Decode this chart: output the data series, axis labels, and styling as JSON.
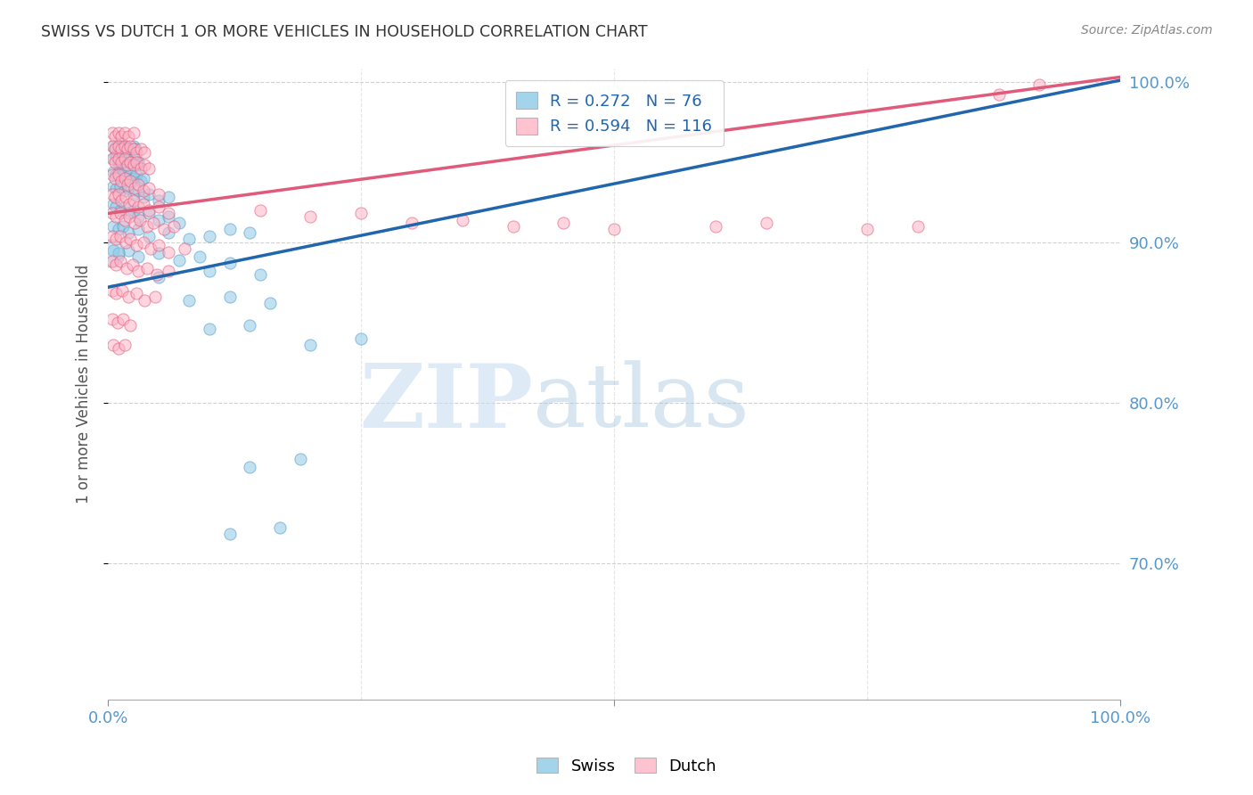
{
  "title": "SWISS VS DUTCH 1 OR MORE VEHICLES IN HOUSEHOLD CORRELATION CHART",
  "source": "Source: ZipAtlas.com",
  "ylabel": "1 or more Vehicles in Household",
  "watermark": "ZIPatlas",
  "legend_swiss": "Swiss",
  "legend_dutch": "Dutch",
  "swiss_R": "0.272",
  "swiss_N": "76",
  "dutch_R": "0.594",
  "dutch_N": "116",
  "swiss_color": "#8ecae6",
  "dutch_color": "#ffb3c6",
  "swiss_line_color": "#2166ac",
  "dutch_line_color": "#e05a7a",
  "background_color": "#ffffff",
  "axis_color": "#5599cc",
  "watermark_light": "#d0e8f8",
  "watermark_dark": "#b0c8e0",
  "xmin": 0.0,
  "xmax": 1.0,
  "ymin": 0.615,
  "ymax": 1.008,
  "yticks": [
    0.7,
    0.8,
    0.9,
    1.0
  ],
  "ytick_labels": [
    "70.0%",
    "80.0%",
    "90.0%",
    "100.0%"
  ],
  "swiss_line_x0": 0.0,
  "swiss_line_y0": 0.872,
  "swiss_line_x1": 1.0,
  "swiss_line_y1": 1.001,
  "dutch_line_x0": 0.0,
  "dutch_line_y0": 0.918,
  "dutch_line_x1": 1.0,
  "dutch_line_y1": 1.003,
  "swiss_points": [
    [
      0.005,
      0.96
    ],
    [
      0.007,
      0.958
    ],
    [
      0.009,
      0.956
    ],
    [
      0.012,
      0.962
    ],
    [
      0.014,
      0.96
    ],
    [
      0.016,
      0.958
    ],
    [
      0.018,
      0.96
    ],
    [
      0.02,
      0.956
    ],
    [
      0.022,
      0.958
    ],
    [
      0.025,
      0.96
    ],
    [
      0.027,
      0.958
    ],
    [
      0.005,
      0.952
    ],
    [
      0.008,
      0.954
    ],
    [
      0.01,
      0.95
    ],
    [
      0.012,
      0.952
    ],
    [
      0.015,
      0.95
    ],
    [
      0.018,
      0.948
    ],
    [
      0.02,
      0.952
    ],
    [
      0.022,
      0.95
    ],
    [
      0.025,
      0.952
    ],
    [
      0.028,
      0.948
    ],
    [
      0.03,
      0.95
    ],
    [
      0.005,
      0.944
    ],
    [
      0.008,
      0.942
    ],
    [
      0.01,
      0.944
    ],
    [
      0.013,
      0.942
    ],
    [
      0.016,
      0.944
    ],
    [
      0.019,
      0.94
    ],
    [
      0.022,
      0.942
    ],
    [
      0.025,
      0.94
    ],
    [
      0.028,
      0.942
    ],
    [
      0.032,
      0.938
    ],
    [
      0.035,
      0.94
    ],
    [
      0.005,
      0.935
    ],
    [
      0.008,
      0.933
    ],
    [
      0.012,
      0.935
    ],
    [
      0.016,
      0.932
    ],
    [
      0.02,
      0.934
    ],
    [
      0.025,
      0.93
    ],
    [
      0.03,
      0.932
    ],
    [
      0.035,
      0.928
    ],
    [
      0.04,
      0.93
    ],
    [
      0.05,
      0.926
    ],
    [
      0.06,
      0.928
    ],
    [
      0.005,
      0.924
    ],
    [
      0.008,
      0.922
    ],
    [
      0.012,
      0.92
    ],
    [
      0.016,
      0.922
    ],
    [
      0.02,
      0.918
    ],
    [
      0.025,
      0.92
    ],
    [
      0.03,
      0.916
    ],
    [
      0.04,
      0.918
    ],
    [
      0.05,
      0.914
    ],
    [
      0.06,
      0.916
    ],
    [
      0.07,
      0.912
    ],
    [
      0.005,
      0.91
    ],
    [
      0.01,
      0.908
    ],
    [
      0.015,
      0.91
    ],
    [
      0.02,
      0.906
    ],
    [
      0.03,
      0.908
    ],
    [
      0.04,
      0.904
    ],
    [
      0.06,
      0.906
    ],
    [
      0.08,
      0.902
    ],
    [
      0.1,
      0.904
    ],
    [
      0.12,
      0.908
    ],
    [
      0.14,
      0.906
    ],
    [
      0.005,
      0.895
    ],
    [
      0.01,
      0.893
    ],
    [
      0.02,
      0.895
    ],
    [
      0.03,
      0.891
    ],
    [
      0.05,
      0.893
    ],
    [
      0.07,
      0.889
    ],
    [
      0.09,
      0.891
    ],
    [
      0.12,
      0.887
    ],
    [
      0.05,
      0.878
    ],
    [
      0.1,
      0.882
    ],
    [
      0.15,
      0.88
    ],
    [
      0.08,
      0.864
    ],
    [
      0.12,
      0.866
    ],
    [
      0.16,
      0.862
    ],
    [
      0.1,
      0.846
    ],
    [
      0.14,
      0.848
    ],
    [
      0.2,
      0.836
    ],
    [
      0.25,
      0.84
    ],
    [
      0.14,
      0.76
    ],
    [
      0.19,
      0.765
    ],
    [
      0.12,
      0.718
    ],
    [
      0.17,
      0.722
    ]
  ],
  "swiss_big_point": [
    0.002,
    0.893,
    500
  ],
  "dutch_points": [
    [
      0.004,
      0.968
    ],
    [
      0.007,
      0.966
    ],
    [
      0.01,
      0.968
    ],
    [
      0.013,
      0.966
    ],
    [
      0.016,
      0.968
    ],
    [
      0.02,
      0.966
    ],
    [
      0.025,
      0.968
    ],
    [
      0.004,
      0.96
    ],
    [
      0.007,
      0.958
    ],
    [
      0.01,
      0.96
    ],
    [
      0.013,
      0.958
    ],
    [
      0.016,
      0.96
    ],
    [
      0.019,
      0.958
    ],
    [
      0.022,
      0.96
    ],
    [
      0.025,
      0.958
    ],
    [
      0.028,
      0.956
    ],
    [
      0.032,
      0.958
    ],
    [
      0.036,
      0.956
    ],
    [
      0.004,
      0.952
    ],
    [
      0.007,
      0.95
    ],
    [
      0.01,
      0.952
    ],
    [
      0.013,
      0.95
    ],
    [
      0.016,
      0.952
    ],
    [
      0.019,
      0.948
    ],
    [
      0.022,
      0.95
    ],
    [
      0.025,
      0.948
    ],
    [
      0.028,
      0.95
    ],
    [
      0.032,
      0.946
    ],
    [
      0.036,
      0.948
    ],
    [
      0.04,
      0.946
    ],
    [
      0.004,
      0.942
    ],
    [
      0.007,
      0.94
    ],
    [
      0.01,
      0.942
    ],
    [
      0.013,
      0.938
    ],
    [
      0.016,
      0.94
    ],
    [
      0.019,
      0.936
    ],
    [
      0.022,
      0.938
    ],
    [
      0.026,
      0.934
    ],
    [
      0.03,
      0.936
    ],
    [
      0.035,
      0.932
    ],
    [
      0.04,
      0.934
    ],
    [
      0.05,
      0.93
    ],
    [
      0.004,
      0.93
    ],
    [
      0.007,
      0.928
    ],
    [
      0.01,
      0.93
    ],
    [
      0.013,
      0.926
    ],
    [
      0.017,
      0.928
    ],
    [
      0.021,
      0.924
    ],
    [
      0.025,
      0.926
    ],
    [
      0.03,
      0.922
    ],
    [
      0.035,
      0.924
    ],
    [
      0.04,
      0.92
    ],
    [
      0.05,
      0.922
    ],
    [
      0.06,
      0.918
    ],
    [
      0.004,
      0.918
    ],
    [
      0.008,
      0.916
    ],
    [
      0.012,
      0.918
    ],
    [
      0.016,
      0.914
    ],
    [
      0.021,
      0.916
    ],
    [
      0.026,
      0.912
    ],
    [
      0.031,
      0.914
    ],
    [
      0.038,
      0.91
    ],
    [
      0.045,
      0.912
    ],
    [
      0.055,
      0.908
    ],
    [
      0.065,
      0.91
    ],
    [
      0.004,
      0.904
    ],
    [
      0.008,
      0.902
    ],
    [
      0.012,
      0.904
    ],
    [
      0.017,
      0.9
    ],
    [
      0.022,
      0.902
    ],
    [
      0.028,
      0.898
    ],
    [
      0.035,
      0.9
    ],
    [
      0.042,
      0.896
    ],
    [
      0.05,
      0.898
    ],
    [
      0.06,
      0.894
    ],
    [
      0.075,
      0.896
    ],
    [
      0.004,
      0.888
    ],
    [
      0.008,
      0.886
    ],
    [
      0.012,
      0.888
    ],
    [
      0.018,
      0.884
    ],
    [
      0.024,
      0.886
    ],
    [
      0.03,
      0.882
    ],
    [
      0.038,
      0.884
    ],
    [
      0.048,
      0.88
    ],
    [
      0.06,
      0.882
    ],
    [
      0.004,
      0.87
    ],
    [
      0.008,
      0.868
    ],
    [
      0.014,
      0.87
    ],
    [
      0.02,
      0.866
    ],
    [
      0.028,
      0.868
    ],
    [
      0.036,
      0.864
    ],
    [
      0.046,
      0.866
    ],
    [
      0.004,
      0.852
    ],
    [
      0.009,
      0.85
    ],
    [
      0.015,
      0.852
    ],
    [
      0.022,
      0.848
    ],
    [
      0.005,
      0.836
    ],
    [
      0.01,
      0.834
    ],
    [
      0.016,
      0.836
    ],
    [
      0.15,
      0.92
    ],
    [
      0.2,
      0.916
    ],
    [
      0.25,
      0.918
    ],
    [
      0.3,
      0.912
    ],
    [
      0.35,
      0.914
    ],
    [
      0.4,
      0.91
    ],
    [
      0.45,
      0.912
    ],
    [
      0.5,
      0.908
    ],
    [
      0.6,
      0.91
    ],
    [
      0.65,
      0.912
    ],
    [
      0.75,
      0.908
    ],
    [
      0.8,
      0.91
    ],
    [
      0.88,
      0.992
    ],
    [
      0.92,
      0.998
    ]
  ]
}
